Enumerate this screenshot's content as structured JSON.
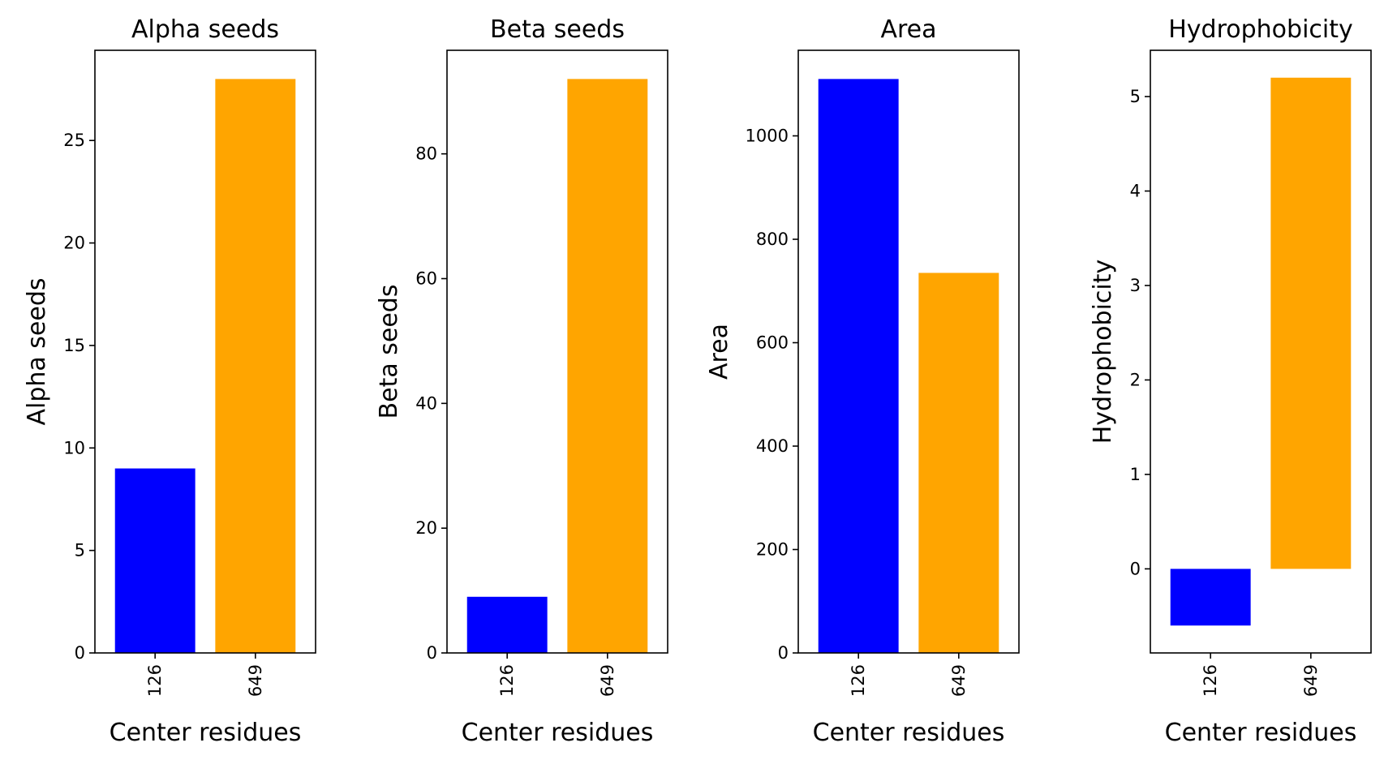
{
  "chart_data": [
    {
      "type": "bar",
      "title": "Alpha seeds",
      "xlabel": "Center residues",
      "ylabel": "Alpha seeds",
      "categories": [
        "126",
        "649"
      ],
      "values": [
        9,
        28
      ],
      "colors": [
        "#0000ff",
        "#ffa500"
      ],
      "ylim": [
        0,
        29.4
      ],
      "yticks": [
        0,
        5,
        10,
        15,
        20,
        25
      ],
      "ytick_labels": [
        "0",
        "5",
        "10",
        "15",
        "20",
        "25"
      ],
      "xtick_rotation": 90,
      "grid": false
    },
    {
      "type": "bar",
      "title": "Beta seeds",
      "xlabel": "Center residues",
      "ylabel": "Beta seeds",
      "categories": [
        "126",
        "649"
      ],
      "values": [
        9,
        92
      ],
      "colors": [
        "#0000ff",
        "#ffa500"
      ],
      "ylim": [
        0,
        96.6
      ],
      "yticks": [
        0,
        20,
        40,
        60,
        80
      ],
      "ytick_labels": [
        "0",
        "20",
        "40",
        "60",
        "80"
      ],
      "xtick_rotation": 90,
      "grid": false
    },
    {
      "type": "bar",
      "title": "Area",
      "xlabel": "Center residues",
      "ylabel": "Area",
      "categories": [
        "126",
        "649"
      ],
      "values": [
        1110,
        735
      ],
      "colors": [
        "#0000ff",
        "#ffa500"
      ],
      "ylim": [
        0,
        1165.5
      ],
      "yticks": [
        0,
        200,
        400,
        600,
        800,
        1000
      ],
      "ytick_labels": [
        "0",
        "200",
        "400",
        "600",
        "800",
        "1000"
      ],
      "xtick_rotation": 90,
      "grid": false
    },
    {
      "type": "bar",
      "title": "Hydrophobicity",
      "xlabel": "Center residues",
      "ylabel": "Hydrophobicity",
      "categories": [
        "126",
        "649"
      ],
      "values": [
        -0.6,
        5.2
      ],
      "colors": [
        "#0000ff",
        "#ffa500"
      ],
      "ylim": [
        -0.89,
        5.49
      ],
      "yticks": [
        0,
        1,
        2,
        3,
        4,
        5
      ],
      "ytick_labels": [
        "0",
        "1",
        "2",
        "3",
        "4",
        "5"
      ],
      "xtick_rotation": 90,
      "grid": false
    }
  ]
}
